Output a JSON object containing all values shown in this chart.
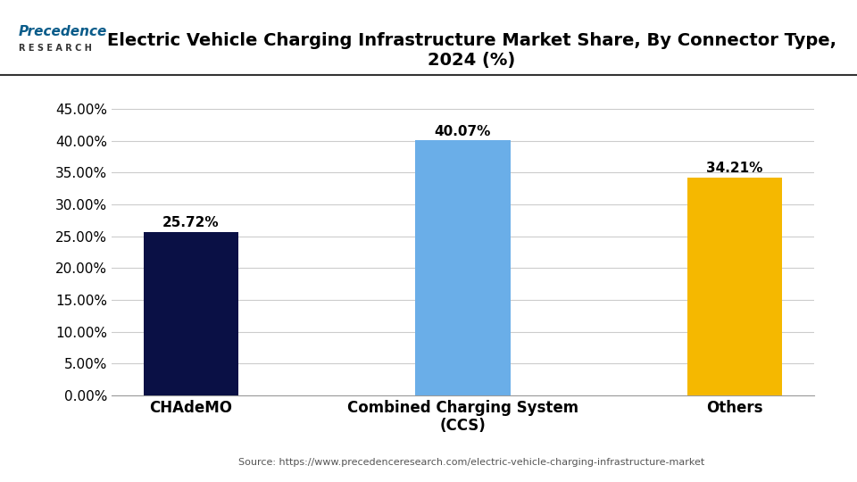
{
  "title": "Electric Vehicle Charging Infrastructure Market Share, By Connector Type,\n2024 (%)",
  "categories": [
    "CHAdeMO",
    "Combined Charging System\n(CCS)",
    "Others"
  ],
  "values": [
    25.72,
    40.07,
    34.21
  ],
  "bar_colors": [
    "#0a1045",
    "#6aaee8",
    "#f5b800"
  ],
  "value_labels": [
    "25.72%",
    "40.07%",
    "34.21%"
  ],
  "ylim": [
    0,
    0.47
  ],
  "yticks": [
    0.0,
    0.05,
    0.1,
    0.15,
    0.2,
    0.25,
    0.3,
    0.35,
    0.4,
    0.45
  ],
  "ytick_labels": [
    "0.00%",
    "5.00%",
    "10.00%",
    "15.00%",
    "20.00%",
    "25.00%",
    "30.00%",
    "35.00%",
    "40.00%",
    "45.00%"
  ],
  "source_text": "Source: https://www.precedenceresearch.com/electric-vehicle-charging-infrastructure-market",
  "background_color": "#ffffff",
  "grid_color": "#cccccc",
  "title_fontsize": 14,
  "tick_fontsize": 11,
  "label_fontsize": 12,
  "value_fontsize": 11,
  "bar_width": 0.35,
  "logo_color": "#0a5c8a"
}
